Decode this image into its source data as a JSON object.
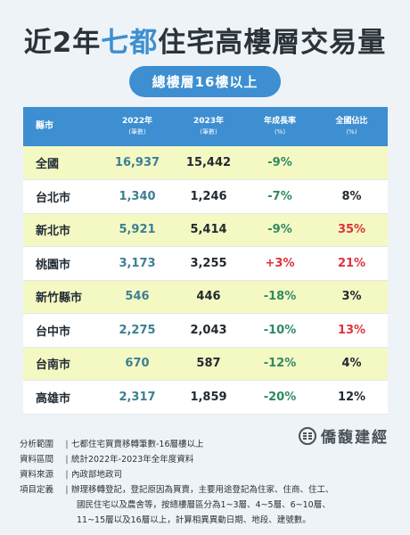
{
  "title": {
    "part1": "近2年",
    "highlight": "七都",
    "part2": "住宅高樓層交易量"
  },
  "subtitle": "總樓層16樓以上",
  "table": {
    "headers": [
      {
        "main": "縣市",
        "sub": ""
      },
      {
        "main": "2022年",
        "sub": "(筆數)"
      },
      {
        "main": "2023年",
        "sub": "(筆數)"
      },
      {
        "main": "年成長率",
        "sub": "(%)"
      },
      {
        "main": "全國佔比",
        "sub": "(%)"
      }
    ],
    "rows": [
      {
        "city": "全國",
        "y2022": "16,937",
        "y2023": "15,442",
        "growth": "-9%",
        "share": ""
      },
      {
        "city": "台北市",
        "y2022": "1,340",
        "y2023": "1,246",
        "growth": "-7%",
        "share": "8%"
      },
      {
        "city": "新北市",
        "y2022": "5,921",
        "y2023": "5,414",
        "growth": "-9%",
        "share": "35%"
      },
      {
        "city": "桃園市",
        "y2022": "3,173",
        "y2023": "3,255",
        "growth": "+3%",
        "share": "21%"
      },
      {
        "city": "新竹縣市",
        "y2022": "546",
        "y2023": "446",
        "growth": "-18%",
        "share": "3%"
      },
      {
        "city": "台中市",
        "y2022": "2,275",
        "y2023": "2,043",
        "growth": "-10%",
        "share": "13%"
      },
      {
        "city": "台南市",
        "y2022": "670",
        "y2023": "587",
        "growth": "-12%",
        "share": "4%"
      },
      {
        "city": "高雄市",
        "y2022": "2,317",
        "y2023": "1,859",
        "growth": "-20%",
        "share": "12%"
      }
    ]
  },
  "brand": "僑馥建經",
  "notes": [
    {
      "key": "分析範圍",
      "lines": [
        "七都住宅買賣移轉筆數-16層樓以上"
      ]
    },
    {
      "key": "資料區間",
      "lines": [
        "統計2022年-2023年全年度資料"
      ]
    },
    {
      "key": "資料來源",
      "lines": [
        "內政部地政司"
      ]
    },
    {
      "key": "項目定義",
      "lines": [
        "辦理移轉登記，登記原因為買賣，主要用途登記為住家、住商、住工、",
        "國民住宅以及農舍等，按總樓層區分為1~3層、4~5層、6~10層、",
        "11~15層以及16層以上，計算相異異動日期、地段、建號數。"
      ]
    }
  ],
  "colors": {
    "accent": "#3d8fd1",
    "highlight_row": "#f4f9c4",
    "negative": "#2f8a62",
    "positive": "#e0323c"
  }
}
